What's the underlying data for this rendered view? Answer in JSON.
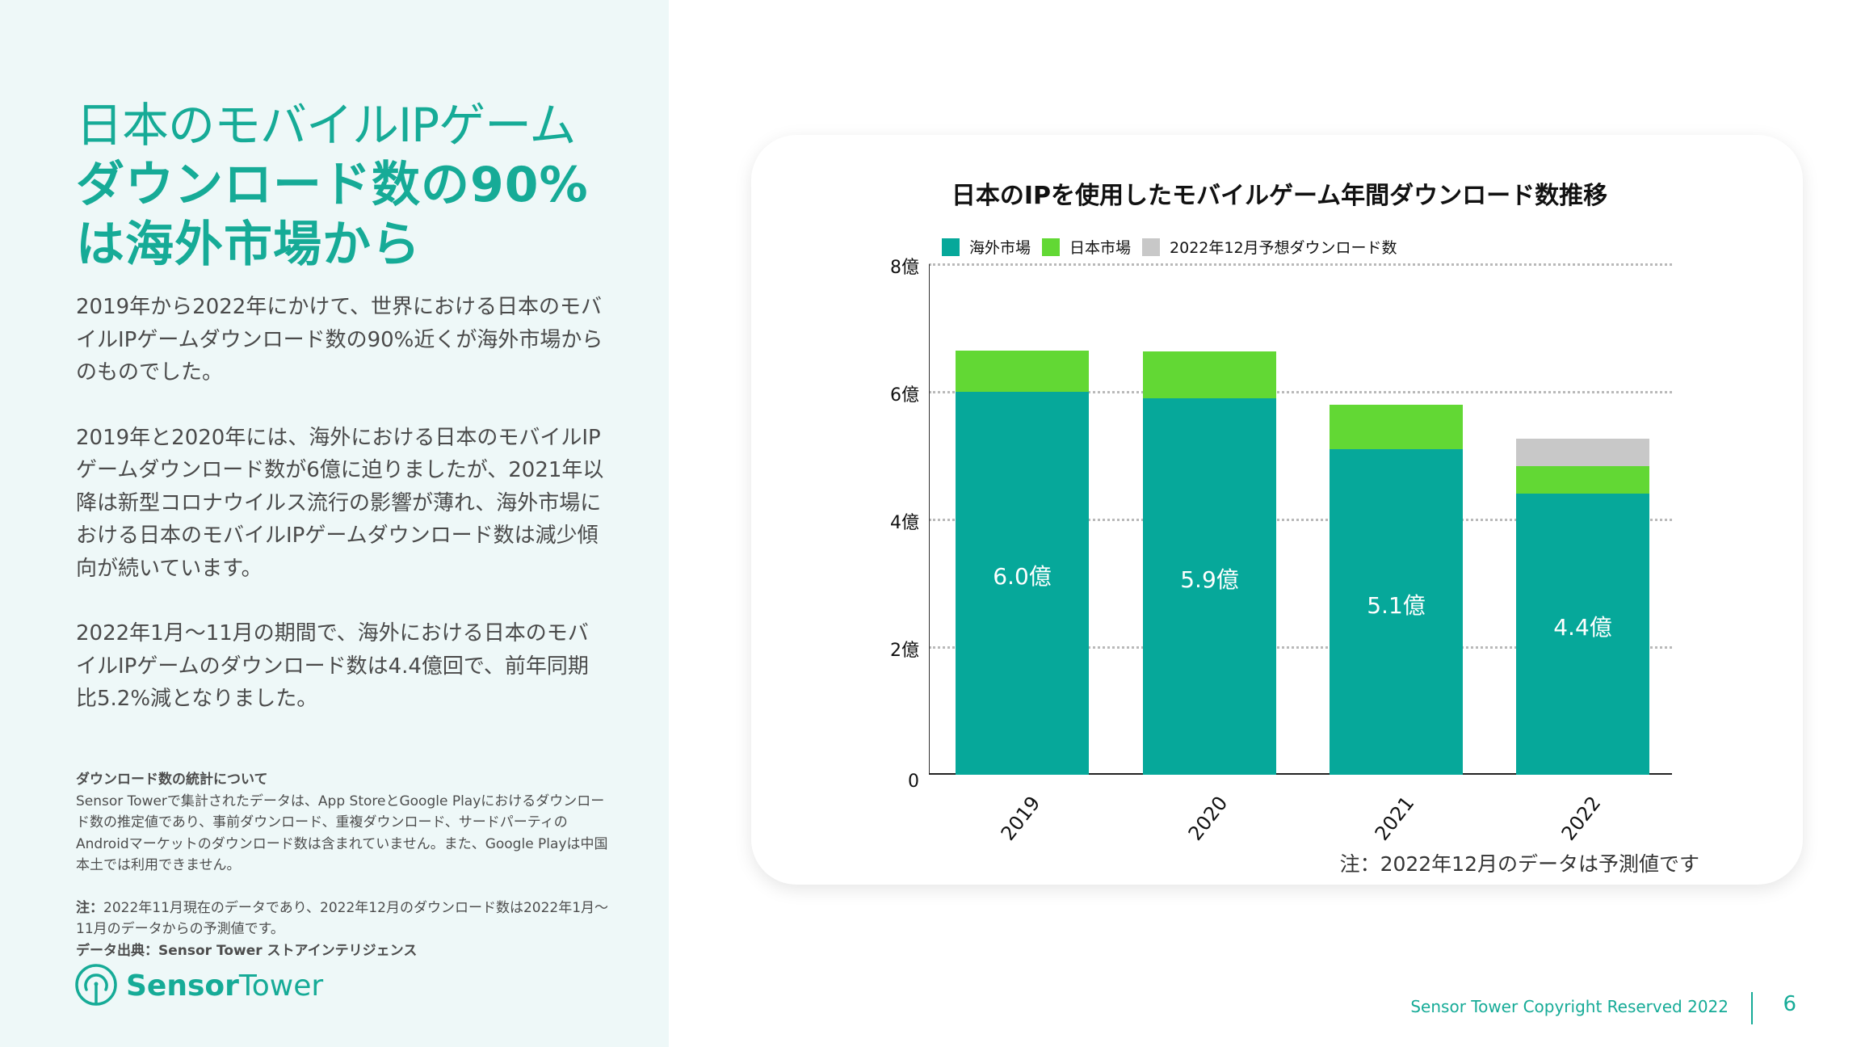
{
  "headline": {
    "line1": "日本のモバイルIPゲーム",
    "line2": "ダウンロード数の90%",
    "line3": "は海外市場から"
  },
  "body": {
    "paragraphs": [
      "2019年から2022年にかけて、世界における日本のモバイルIPゲームダウンロード数の90%近くが海外市場からのものでした。",
      "2019年と2020年には、海外における日本のモバイルIPゲームダウンロード数が6億に迫りましたが、2021年以降は新型コロナウイルス流行の影響が薄れ、海外市場における日本のモバイルIPゲームダウンロード数は減少傾向が続いています。",
      "2022年1月～11月の期間で、海外における日本のモバイルIPゲームのダウンロード数は4.4億回で、前年同期比5.2%減となりました。"
    ]
  },
  "notes": {
    "heading": "ダウンロード数の統計について",
    "methodology": "Sensor Towerで集計されたデータは、App StoreとGoogle Playにおけるダウンロード数の推定値であり、事前ダウンロード、重複ダウンロード、サードパーティのAndroidマーケットのダウンロード数は含まれていません。また、Google Playは中国本土では利用できません。",
    "note_label": "注：",
    "note_text": "2022年11月現在のデータであり、2022年12月のダウンロード数は2022年1月～11月のデータからの予測値です。",
    "source_label": "データ出典：Sensor Tower ストアインテリジェンス"
  },
  "logo": {
    "bold": "Sensor",
    "light": "Tower",
    "icon": "sensor-tower-logo-icon"
  },
  "footer": {
    "copyright": "Sensor Tower Copyright Reserved 2022",
    "page_number": "6"
  },
  "colors": {
    "brand": "#16ab97",
    "overseas": "#06a89a",
    "japan": "#62d834",
    "forecast": "#c8c8c8",
    "panel_bg": "#eef8f8"
  },
  "chart_data": {
    "type": "bar",
    "stacked": true,
    "title": "日本のIPを使用したモバイルゲーム年間ダウンロード数推移",
    "categories": [
      "2019",
      "2020",
      "2021",
      "2022"
    ],
    "series": [
      {
        "name": "海外市場",
        "color": "#06a89a",
        "values": [
          6.0,
          5.9,
          5.1,
          4.4
        ]
      },
      {
        "name": "日本市場",
        "color": "#62d834",
        "values": [
          0.64,
          0.73,
          0.7,
          0.43
        ]
      },
      {
        "name": "2022年12月予想ダウンロード数",
        "color": "#c8c8c8",
        "values": [
          0,
          0,
          0,
          0.44
        ]
      }
    ],
    "bar_labels": [
      "6.0億",
      "5.9億",
      "5.1億",
      "4.4億"
    ],
    "xlabel": "",
    "ylabel": "",
    "ylim": [
      0,
      8
    ],
    "yticks": [
      {
        "value": 0,
        "label": "0"
      },
      {
        "value": 2,
        "label": "2億"
      },
      {
        "value": 4,
        "label": "4億"
      },
      {
        "value": 6,
        "label": "6億"
      },
      {
        "value": 8,
        "label": "8億"
      }
    ],
    "grid": true,
    "legend_position": "top",
    "annotation": "注：2022年12月のデータは予測値です",
    "watermark": "SensorTower"
  }
}
